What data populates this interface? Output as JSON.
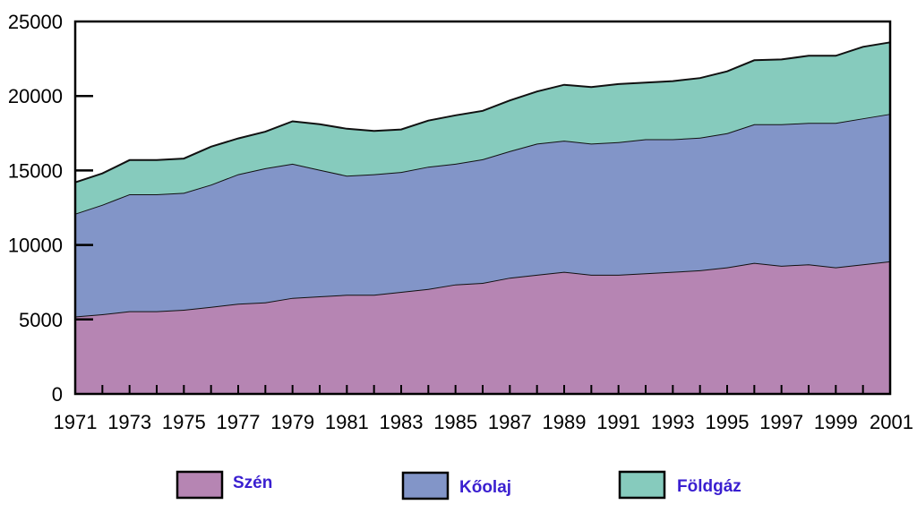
{
  "chart_data": {
    "type": "area",
    "stacked": true,
    "x": [
      1971,
      1972,
      1973,
      1974,
      1975,
      1976,
      1977,
      1978,
      1979,
      1980,
      1981,
      1982,
      1983,
      1984,
      1985,
      1986,
      1987,
      1988,
      1989,
      1990,
      1991,
      1992,
      1993,
      1994,
      1995,
      1996,
      1997,
      1998,
      1999,
      2000,
      2001
    ],
    "xticks": [
      "1971",
      "1973",
      "1975",
      "1977",
      "1979",
      "1981",
      "1983",
      "1985",
      "1987",
      "1989",
      "1991",
      "1993",
      "1995",
      "1997",
      "1999",
      "2001"
    ],
    "yticks": [
      "0",
      "5000",
      "10000",
      "15000",
      "20000",
      "25000"
    ],
    "ylim": [
      0,
      25000
    ],
    "grid": false,
    "legend_position": "bottom",
    "series": [
      {
        "name": "Szén",
        "color": "#b685b3",
        "values": [
          5200,
          5350,
          5550,
          5550,
          5650,
          5850,
          6050,
          6150,
          6450,
          6550,
          6650,
          6650,
          6850,
          7050,
          7350,
          7450,
          7800,
          8000,
          8200,
          8000,
          8000,
          8100,
          8200,
          8300,
          8500,
          8800,
          8600,
          8700,
          8500,
          8700,
          8900
        ]
      },
      {
        "name": "Kőolaj",
        "color": "#8295c8",
        "values": [
          6900,
          7350,
          7850,
          7850,
          7850,
          8200,
          8700,
          9000,
          9000,
          8500,
          8000,
          8100,
          8050,
          8200,
          8100,
          8300,
          8500,
          8800,
          8800,
          8800,
          8900,
          9000,
          8900,
          8900,
          9000,
          9300,
          9500,
          9500,
          9700,
          9800,
          9900
        ]
      },
      {
        "name": "Földgáz",
        "color": "#86cbbd",
        "values": [
          2100,
          2100,
          2300,
          2300,
          2300,
          2550,
          2400,
          2450,
          2850,
          3050,
          3150,
          2900,
          2850,
          3100,
          3250,
          3250,
          3400,
          3500,
          3750,
          3800,
          3900,
          3800,
          3900,
          4000,
          4150,
          4300,
          4350,
          4500,
          4500,
          4800,
          4800
        ]
      }
    ]
  }
}
